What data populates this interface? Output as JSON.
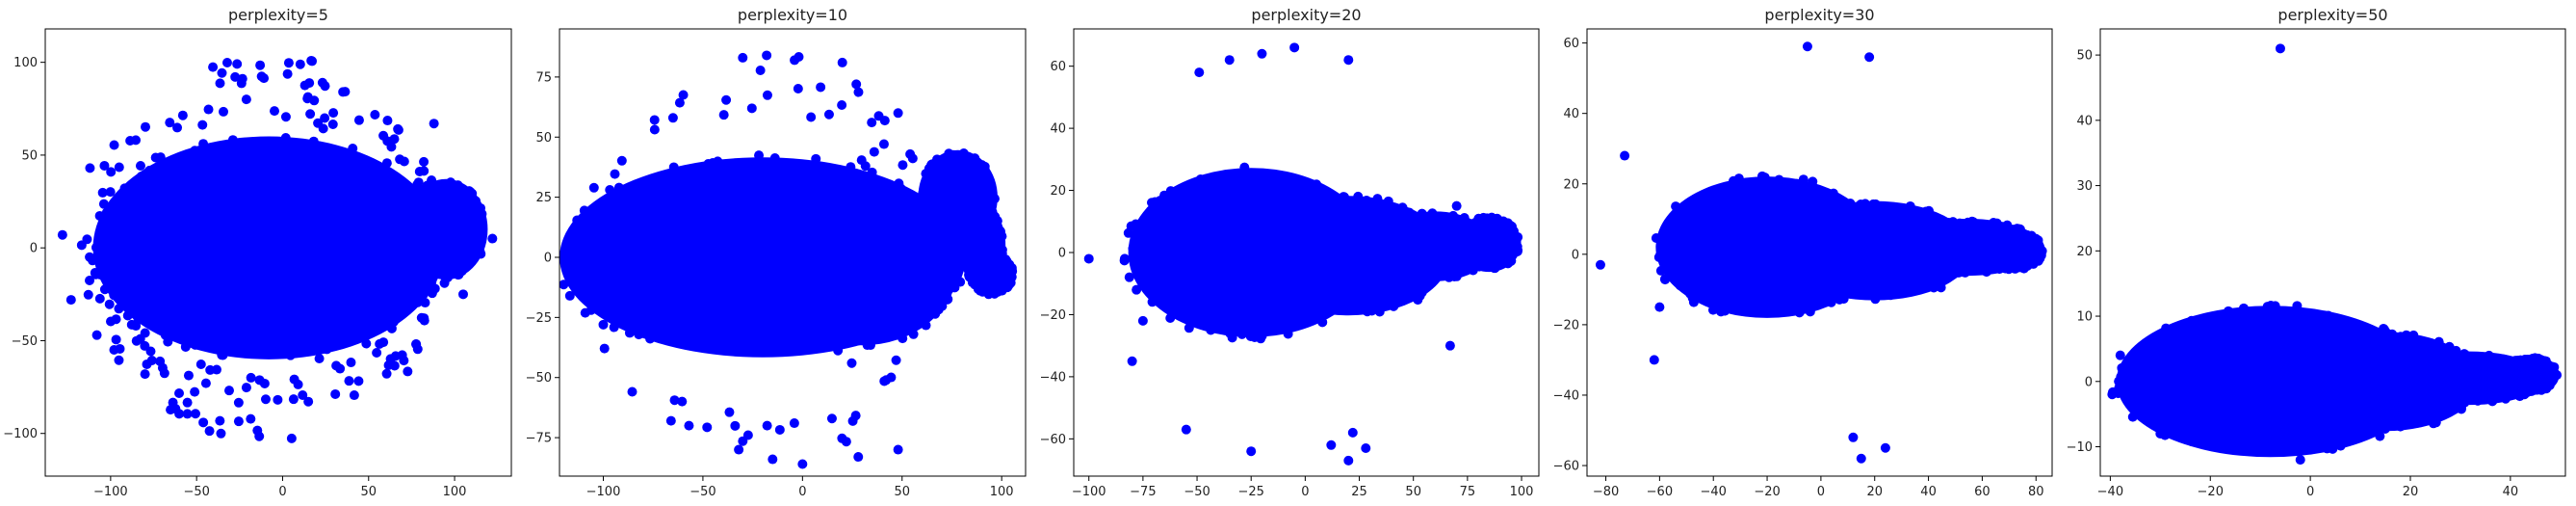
{
  "figure": {
    "background": "#ffffff"
  },
  "chart_data": [
    {
      "type": "scatter",
      "title": "perplexity=5",
      "xlabel": "",
      "ylabel": "",
      "xlim": [
        -138,
        133
      ],
      "ylim": [
        -123,
        118
      ],
      "xticks": [
        "−100",
        "−50",
        "0",
        "50",
        "100"
      ],
      "xtick_values": [
        -100,
        -50,
        0,
        50,
        100
      ],
      "yticks": [
        "−100",
        "−50",
        "0",
        "50",
        "100"
      ],
      "ytick_values": [
        -100,
        -50,
        0,
        50,
        100
      ],
      "grid": false,
      "color": "#0000ff",
      "clusters": [
        {
          "shape": "ellipse",
          "cx": -8,
          "cy": 0,
          "rx": 100,
          "ry": 58
        },
        {
          "shape": "ellipse",
          "cx": 10,
          "cy": -5,
          "rx": 80,
          "ry": 45
        },
        {
          "shape": "ellipse",
          "cx": 95,
          "cy": 10,
          "rx": 22,
          "ry": 25
        }
      ],
      "outlier_ring": {
        "cx": -10,
        "cy": 0,
        "r": 105,
        "count": 220
      },
      "points": [
        [
          -128,
          7
        ],
        [
          -123,
          -28
        ],
        [
          -108,
          -47
        ],
        [
          -112,
          43
        ],
        [
          105,
          -25
        ],
        [
          122,
          5
        ],
        [
          -80,
          -68
        ],
        [
          88,
          67
        ]
      ]
    },
    {
      "type": "scatter",
      "title": "perplexity=10",
      "xlabel": "",
      "ylabel": "",
      "xlim": [
        -122,
        112
      ],
      "ylim": [
        -91,
        95
      ],
      "xticks": [
        "−100",
        "−50",
        "0",
        "50",
        "100"
      ],
      "xtick_values": [
        -100,
        -50,
        0,
        50,
        100
      ],
      "yticks": [
        "−75",
        "−50",
        "−25",
        "0",
        "25",
        "50",
        "75"
      ],
      "ytick_values": [
        -75,
        -50,
        -25,
        0,
        25,
        50,
        75
      ],
      "grid": false,
      "color": "#0000ff",
      "clusters": [
        {
          "shape": "ellipse",
          "cx": -20,
          "cy": 0,
          "rx": 100,
          "ry": 40
        },
        {
          "shape": "ellipse",
          "cx": 30,
          "cy": -5,
          "rx": 45,
          "ry": 30
        },
        {
          "shape": "ellipse",
          "cx": 78,
          "cy": 25,
          "rx": 18,
          "ry": 18
        },
        {
          "shape": "ellipse",
          "cx": 90,
          "cy": 5,
          "rx": 10,
          "ry": 15
        },
        {
          "shape": "ellipse",
          "cx": 95,
          "cy": -7,
          "rx": 10,
          "ry": 8
        }
      ],
      "outlier_ring": {
        "cx": -20,
        "cy": 0,
        "r": 88,
        "count": 70
      },
      "points": [
        [
          -115,
          -2
        ],
        [
          -65,
          58
        ],
        [
          48,
          60
        ],
        [
          -30,
          83
        ],
        [
          -18,
          84
        ],
        [
          -4,
          82
        ],
        [
          20,
          81
        ],
        [
          27,
          72
        ],
        [
          -66,
          -68
        ],
        [
          -57,
          -70
        ],
        [
          -32,
          -80
        ],
        [
          -15,
          -84
        ],
        [
          0,
          -86
        ],
        [
          28,
          -83
        ],
        [
          48,
          -80
        ],
        [
          -100,
          -28
        ],
        [
          -98,
          7
        ]
      ]
    },
    {
      "type": "scatter",
      "title": "perplexity=20",
      "xlabel": "",
      "ylabel": "",
      "xlim": [
        -107,
        108
      ],
      "ylim": [
        -72,
        72
      ],
      "xticks": [
        "−100",
        "−75",
        "−50",
        "−25",
        "0",
        "25",
        "50",
        "75",
        "100"
      ],
      "xtick_values": [
        -100,
        -75,
        -50,
        -25,
        0,
        25,
        50,
        75,
        100
      ],
      "yticks": [
        "−60",
        "−40",
        "−20",
        "0",
        "20",
        "40",
        "60"
      ],
      "ytick_values": [
        -60,
        -40,
        -20,
        0,
        20,
        40,
        60
      ],
      "grid": false,
      "color": "#0000ff",
      "clusters": [
        {
          "shape": "ellipse",
          "cx": -25,
          "cy": 0,
          "rx": 55,
          "ry": 26
        },
        {
          "shape": "ellipse",
          "cx": 20,
          "cy": -1,
          "rx": 45,
          "ry": 18
        },
        {
          "shape": "ellipse",
          "cx": 60,
          "cy": 2,
          "rx": 25,
          "ry": 10
        },
        {
          "shape": "ellipse",
          "cx": 85,
          "cy": 3,
          "rx": 13,
          "ry": 8
        }
      ],
      "points": [
        [
          -100,
          -2
        ],
        [
          -49,
          58
        ],
        [
          -35,
          62
        ],
        [
          -20,
          64
        ],
        [
          -5,
          66
        ],
        [
          20,
          62
        ],
        [
          -80,
          -35
        ],
        [
          -75,
          -22
        ],
        [
          -78,
          -12
        ],
        [
          -55,
          -57
        ],
        [
          -25,
          -64
        ],
        [
          12,
          -62
        ],
        [
          20,
          -67
        ],
        [
          22,
          -58
        ],
        [
          28,
          -63
        ],
        [
          67,
          -30
        ],
        [
          70,
          15
        ]
      ]
    },
    {
      "type": "scatter",
      "title": "perplexity=30",
      "xlabel": "",
      "ylabel": "",
      "xlim": [
        -87,
        86
      ],
      "ylim": [
        -63,
        64
      ],
      "xticks": [
        "−80",
        "−60",
        "−40",
        "−20",
        "0",
        "20",
        "40",
        "60",
        "80"
      ],
      "xtick_values": [
        -80,
        -60,
        -40,
        -20,
        0,
        20,
        40,
        60,
        80
      ],
      "yticks": [
        "−60",
        "−40",
        "−20",
        "0",
        "20",
        "40",
        "60"
      ],
      "ytick_values": [
        -60,
        -40,
        -20,
        0,
        20,
        40,
        60
      ],
      "grid": false,
      "color": "#0000ff",
      "clusters": [
        {
          "shape": "ellipse",
          "cx": -20,
          "cy": 2,
          "rx": 40,
          "ry": 19
        },
        {
          "shape": "ellipse",
          "cx": 20,
          "cy": 1,
          "rx": 35,
          "ry": 13
        },
        {
          "shape": "ellipse",
          "cx": 55,
          "cy": 2,
          "rx": 25,
          "ry": 7
        },
        {
          "shape": "ellipse",
          "cx": 72,
          "cy": 1,
          "rx": 10,
          "ry": 5
        }
      ],
      "points": [
        [
          -82,
          -3
        ],
        [
          -73,
          28
        ],
        [
          -5,
          59
        ],
        [
          18,
          56
        ],
        [
          -62,
          -30
        ],
        [
          -60,
          -15
        ],
        [
          12,
          -52
        ],
        [
          15,
          -58
        ],
        [
          24,
          -55
        ]
      ]
    },
    {
      "type": "scatter",
      "title": "perplexity=50",
      "xlabel": "",
      "ylabel": "",
      "xlim": [
        -42,
        51
      ],
      "ylim": [
        -14.5,
        54
      ],
      "xticks": [
        "−40",
        "−20",
        "0",
        "20",
        "40"
      ],
      "xtick_values": [
        -40,
        -20,
        0,
        20,
        40
      ],
      "yticks": [
        "−10",
        "0",
        "10",
        "20",
        "30",
        "40",
        "50"
      ],
      "ytick_values": [
        -10,
        0,
        10,
        20,
        30,
        40,
        50
      ],
      "grid": false,
      "color": "#0000ff",
      "clusters": [
        {
          "shape": "ellipse",
          "cx": -8,
          "cy": 0,
          "rx": 30,
          "ry": 11
        },
        {
          "shape": "ellipse",
          "cx": 15,
          "cy": 0,
          "rx": 18,
          "ry": 7
        },
        {
          "shape": "ellipse",
          "cx": 32,
          "cy": 0.5,
          "rx": 14,
          "ry": 3.5
        },
        {
          "shape": "ellipse",
          "cx": 44,
          "cy": 1,
          "rx": 5,
          "ry": 2.5
        }
      ],
      "points": [
        [
          -6,
          51
        ],
        [
          -38,
          4
        ],
        [
          -30,
          -8
        ],
        [
          -2,
          -12
        ]
      ]
    }
  ]
}
